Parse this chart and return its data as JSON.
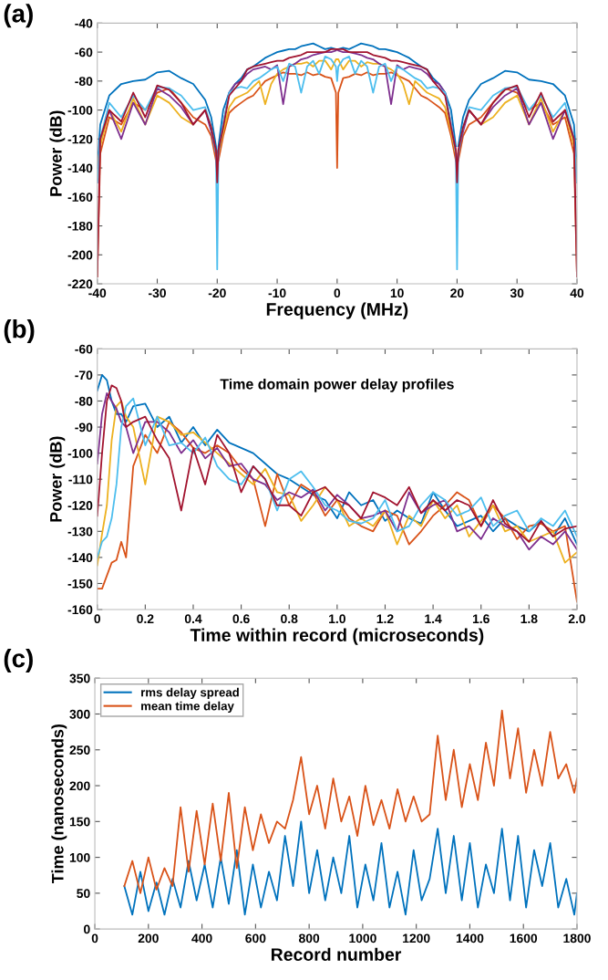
{
  "chart_data": [
    {
      "type": "line",
      "xlabel": "Frequency (MHz)",
      "ylabel": "Power (dB)",
      "annotations": [
        "(a)"
      ],
      "x": [
        -40,
        -39.5,
        -38,
        -36,
        -34,
        -32,
        -30,
        -28,
        -26,
        -24,
        -22,
        -21,
        -20.2,
        -20,
        -19.8,
        -19,
        -18,
        -17,
        -16,
        -15,
        -14,
        -13,
        -12,
        -11,
        -10,
        -9,
        -8,
        -7,
        -6,
        -5,
        -4,
        -3,
        -2,
        -1,
        -0.2,
        0,
        0.2,
        1,
        2,
        3,
        4,
        5,
        6,
        7,
        8,
        9,
        10,
        11,
        12,
        13,
        14,
        15,
        16,
        17,
        18,
        19,
        19.8,
        20,
        20.2,
        21,
        22,
        24,
        26,
        28,
        30,
        32,
        34,
        36,
        38,
        39.5,
        40
      ],
      "xlim": [
        -40,
        40
      ],
      "xticks": [
        -40,
        -30,
        -20,
        -10,
        0,
        10,
        20,
        30,
        40
      ],
      "ylim": [
        -220,
        -40
      ],
      "yticks": [
        -220,
        -200,
        -180,
        -160,
        -140,
        -120,
        -100,
        -80,
        -60,
        -40
      ],
      "series": [
        {
          "color": "#0072bd",
          "values": [
            -140,
            -110,
            -90,
            -82,
            -80,
            -79,
            -74,
            -73,
            -78,
            -82,
            -93,
            -105,
            -125,
            -140,
            -125,
            -100,
            -88,
            -82,
            -78,
            -72,
            -70,
            -67,
            -64,
            -62,
            -60,
            -59,
            -58,
            -58,
            -56,
            -55,
            -54,
            -56,
            -58,
            -57,
            -58,
            -58,
            -58,
            -57,
            -58,
            -56,
            -54,
            -55,
            -56,
            -58,
            -58,
            -59,
            -60,
            -62,
            -64,
            -67,
            -70,
            -72,
            -78,
            -82,
            -88,
            -100,
            -125,
            null,
            -125,
            -105,
            -93,
            -82,
            -78,
            -73,
            -74,
            -79,
            -80,
            -82,
            -90,
            -110,
            -140
          ]
        },
        {
          "color": "#d95319",
          "values": [
            -215,
            -130,
            -105,
            -110,
            -95,
            -100,
            -88,
            -85,
            -95,
            -105,
            -110,
            -118,
            -135,
            null,
            -135,
            -118,
            -102,
            -98,
            -95,
            -92,
            -90,
            -85,
            -80,
            -78,
            -76,
            -74,
            -75,
            -75,
            -76,
            -74,
            -76,
            -75,
            -77,
            -78,
            -88,
            -140,
            -88,
            -78,
            -77,
            -75,
            -76,
            -74,
            -76,
            -75,
            -75,
            -74,
            -76,
            -78,
            -80,
            -85,
            -90,
            -92,
            -95,
            -98,
            -102,
            -118,
            -135,
            null,
            -135,
            -118,
            -110,
            -105,
            -95,
            -85,
            -88,
            -100,
            -95,
            -110,
            -105,
            -130,
            -215
          ]
        },
        {
          "color": "#edb120",
          "values": [
            -140,
            -125,
            -100,
            -115,
            -92,
            -110,
            -90,
            -95,
            -105,
            -110,
            -100,
            -112,
            -130,
            -140,
            -130,
            -115,
            -98,
            -92,
            -90,
            -88,
            -84,
            -80,
            -96,
            -82,
            -75,
            -72,
            -70,
            -68,
            -68,
            -67,
            -70,
            -66,
            -66,
            -72,
            -65,
            -65,
            -65,
            -72,
            -66,
            -66,
            -70,
            -67,
            -68,
            -68,
            -70,
            -72,
            -75,
            -82,
            -96,
            -80,
            -84,
            -88,
            -90,
            -92,
            -98,
            -115,
            -130,
            null,
            -130,
            -112,
            -100,
            -110,
            -105,
            -95,
            -90,
            -110,
            -92,
            -115,
            -100,
            -125,
            -140
          ]
        },
        {
          "color": "#7e2f8e",
          "values": [
            -150,
            -120,
            -100,
            -120,
            -95,
            -110,
            -85,
            -90,
            -98,
            -110,
            -100,
            -115,
            -130,
            -145,
            -128,
            -110,
            -88,
            -82,
            -80,
            -75,
            -72,
            -71,
            -70,
            -72,
            -69,
            -96,
            -70,
            -68,
            -65,
            -64,
            -62,
            -61,
            -60,
            -60,
            -59,
            -58,
            -59,
            -60,
            -60,
            -61,
            -62,
            -64,
            -65,
            -68,
            -70,
            -96,
            -69,
            -72,
            -70,
            -71,
            -72,
            -75,
            -80,
            -82,
            -88,
            -110,
            -128,
            -145,
            -130,
            -115,
            -100,
            -110,
            -98,
            -90,
            -85,
            -110,
            -95,
            -120,
            -100,
            -120,
            -150
          ]
        },
        {
          "color": "#4dbeee",
          "values": [
            -150,
            -120,
            -95,
            -105,
            -90,
            -100,
            -84,
            -85,
            -90,
            -100,
            -98,
            -112,
            -130,
            -210,
            -130,
            -110,
            -88,
            -85,
            -84,
            -85,
            -80,
            -78,
            -75,
            -72,
            -70,
            -80,
            -68,
            -70,
            -88,
            -70,
            -66,
            -75,
            -63,
            -65,
            -70,
            -80,
            -70,
            -65,
            -63,
            -75,
            -66,
            -70,
            -88,
            -70,
            -68,
            -80,
            -70,
            -72,
            -75,
            -78,
            -80,
            -85,
            -84,
            -85,
            -88,
            -110,
            -130,
            -210,
            -130,
            -112,
            -98,
            -100,
            -90,
            -85,
            -84,
            -100,
            -90,
            -105,
            -95,
            -120,
            -150
          ]
        },
        {
          "color": "#a2142f",
          "values": [
            -215,
            -120,
            -100,
            -108,
            -88,
            -105,
            -83,
            -86,
            -95,
            -110,
            -100,
            -112,
            -128,
            -150,
            -128,
            -112,
            -90,
            -85,
            -80,
            -72,
            -70,
            -69,
            -68,
            -67,
            -66,
            -66,
            -64,
            -63,
            -62,
            -60,
            -60,
            -60,
            -60,
            -58,
            -58,
            -58,
            -58,
            -58,
            -60,
            -60,
            -60,
            -60,
            -62,
            -63,
            -64,
            -66,
            -66,
            -67,
            -68,
            -69,
            -70,
            -72,
            -80,
            -85,
            -90,
            -112,
            -128,
            -150,
            -128,
            -112,
            -100,
            -110,
            -95,
            -86,
            -83,
            -105,
            -88,
            -108,
            -100,
            -120,
            -215
          ]
        }
      ]
    },
    {
      "type": "line",
      "xlabel": "Time within record (microseconds)",
      "ylabel": "Power (dB)",
      "annotations": [
        "(b)",
        "Time domain power delay profiles"
      ],
      "x": [
        0,
        0.02,
        0.04,
        0.06,
        0.08,
        0.1,
        0.12,
        0.15,
        0.2,
        0.25,
        0.3,
        0.35,
        0.4,
        0.45,
        0.5,
        0.55,
        0.6,
        0.65,
        0.7,
        0.75,
        0.8,
        0.85,
        0.9,
        0.95,
        1.0,
        1.05,
        1.1,
        1.15,
        1.2,
        1.25,
        1.3,
        1.35,
        1.4,
        1.45,
        1.5,
        1.55,
        1.6,
        1.65,
        1.7,
        1.75,
        1.8,
        1.85,
        1.9,
        1.95,
        2.0
      ],
      "xlim": [
        0,
        2.0
      ],
      "xticks": [
        {
          "value": 0,
          "label": "0"
        },
        0.2,
        0.4,
        0.6,
        0.8,
        {
          "value": 1.0,
          "label": "1.0"
        },
        1.2,
        1.4,
        1.6,
        1.8,
        {
          "value": 2.0,
          "label": "2.0"
        }
      ],
      "ylim": [
        -160,
        -60
      ],
      "yticks": [
        -160,
        -150,
        -140,
        -130,
        -120,
        -110,
        -100,
        -90,
        -80,
        -70,
        -60
      ],
      "series": [
        {
          "color": "#0072bd",
          "values": [
            -76,
            -70,
            -72,
            -80,
            -85,
            -85,
            -88,
            -82,
            -81,
            -90,
            -86,
            -96,
            -90,
            -97,
            -91,
            -96,
            -98,
            -100,
            -104,
            -108,
            -110,
            -113,
            -116,
            -118,
            -125,
            -115,
            -120,
            -118,
            -126,
            -122,
            -125,
            -127,
            -115,
            -122,
            -128,
            -126,
            -124,
            -130,
            -125,
            -128,
            -130,
            -126,
            -132,
            -125,
            -135
          ]
        },
        {
          "color": "#d95319",
          "values": [
            -152,
            -152,
            -147,
            -142,
            -141,
            -134,
            -140,
            -105,
            -93,
            -100,
            -88,
            -92,
            -98,
            -100,
            -97,
            -100,
            -106,
            -110,
            -128,
            -108,
            -120,
            -112,
            -115,
            -124,
            -118,
            -125,
            -128,
            -130,
            -122,
            -124,
            -135,
            -130,
            -124,
            -120,
            -115,
            -118,
            -128,
            -120,
            -125,
            -133,
            -128,
            -127,
            -130,
            -128,
            -157
          ]
        },
        {
          "color": "#edb120",
          "values": [
            -143,
            -131,
            -120,
            -95,
            -82,
            -80,
            -86,
            -90,
            -112,
            -86,
            -88,
            -93,
            -92,
            -96,
            -100,
            -104,
            -108,
            -112,
            -106,
            -115,
            -116,
            -126,
            -120,
            -113,
            -118,
            -128,
            -125,
            -128,
            -122,
            -135,
            -124,
            -128,
            -118,
            -125,
            -120,
            -132,
            -126,
            -120,
            -130,
            -128,
            -134,
            -132,
            -130,
            -142,
            -138
          ]
        },
        {
          "color": "#7e2f8e",
          "values": [
            -104,
            -85,
            -77,
            -80,
            -83,
            -88,
            -90,
            -100,
            -88,
            -88,
            -92,
            -100,
            -95,
            -102,
            -98,
            -105,
            -104,
            -110,
            -112,
            -118,
            -115,
            -117,
            -114,
            -122,
            -116,
            -120,
            -125,
            -124,
            -122,
            -130,
            -115,
            -123,
            -120,
            -118,
            -130,
            -128,
            -133,
            -125,
            -128,
            -130,
            -137,
            -132,
            -135,
            -130,
            -137
          ]
        },
        {
          "color": "#4dbeee",
          "values": [
            -140,
            -134,
            -132,
            -125,
            -112,
            -90,
            -82,
            -79,
            -97,
            -86,
            -97,
            -96,
            -100,
            -94,
            -105,
            -110,
            -112,
            -105,
            -110,
            -122,
            -110,
            -107,
            -113,
            -120,
            -122,
            -126,
            -127,
            -125,
            -118,
            -130,
            -128,
            -120,
            -115,
            -118,
            -124,
            -122,
            -117,
            -128,
            -124,
            -122,
            -130,
            -125,
            -128,
            -122,
            -132
          ]
        },
        {
          "color": "#a2142f",
          "values": [
            -124,
            -100,
            -80,
            -74,
            -75,
            -80,
            -90,
            -88,
            -86,
            -95,
            -102,
            -122,
            -98,
            -112,
            -93,
            -100,
            -115,
            -105,
            -110,
            -120,
            -120,
            -124,
            -115,
            -113,
            -118,
            -120,
            -125,
            -115,
            -117,
            -120,
            -113,
            -123,
            -118,
            -122,
            -118,
            -120,
            -128,
            -118,
            -127,
            -130,
            -134,
            -126,
            -132,
            -129,
            -128
          ]
        }
      ]
    },
    {
      "type": "line",
      "xlabel": "Record number",
      "ylabel": "Time (nanoseconds)",
      "annotations": [
        "(c)"
      ],
      "legend": "top left",
      "x": [
        110,
        140,
        170,
        200,
        230,
        260,
        290,
        320,
        350,
        380,
        410,
        440,
        470,
        500,
        530,
        560,
        590,
        620,
        650,
        680,
        710,
        740,
        770,
        800,
        830,
        860,
        890,
        920,
        950,
        980,
        1010,
        1040,
        1070,
        1100,
        1130,
        1160,
        1190,
        1220,
        1250,
        1280,
        1310,
        1340,
        1370,
        1400,
        1430,
        1460,
        1490,
        1520,
        1550,
        1580,
        1610,
        1640,
        1670,
        1700,
        1730,
        1760,
        1790,
        1800
      ],
      "xlim": [
        0,
        1800
      ],
      "xticks": [
        0,
        200,
        400,
        600,
        800,
        1000,
        1200,
        1400,
        1600,
        1800
      ],
      "ylim": [
        0,
        350
      ],
      "yticks": [
        0,
        50,
        100,
        150,
        200,
        250,
        300,
        350
      ],
      "series": [
        {
          "name": "rms delay spread",
          "color": "#0072bd",
          "values": [
            60,
            20,
            80,
            25,
            65,
            20,
            70,
            30,
            95,
            40,
            90,
            30,
            100,
            35,
            110,
            20,
            90,
            30,
            80,
            40,
            130,
            60,
            150,
            50,
            110,
            40,
            100,
            50,
            130,
            30,
            90,
            40,
            120,
            30,
            80,
            20,
            110,
            40,
            70,
            140,
            50,
            130,
            40,
            120,
            30,
            90,
            50,
            140,
            40,
            130,
            30,
            110,
            60,
            120,
            30,
            70,
            20,
            50
          ]
        },
        {
          "name": "mean time delay",
          "color": "#d95319",
          "values": [
            60,
            95,
            50,
            100,
            55,
            85,
            60,
            170,
            80,
            165,
            90,
            175,
            95,
            190,
            85,
            170,
            110,
            160,
            120,
            150,
            140,
            180,
            240,
            160,
            200,
            140,
            210,
            150,
            185,
            130,
            200,
            145,
            180,
            140,
            195,
            150,
            185,
            150,
            160,
            270,
            180,
            250,
            170,
            230,
            180,
            260,
            200,
            305,
            210,
            280,
            190,
            250,
            200,
            275,
            210,
            230,
            190,
            210
          ]
        }
      ]
    }
  ]
}
